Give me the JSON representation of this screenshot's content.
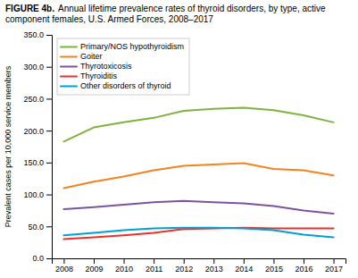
{
  "chart_data": {
    "type": "line",
    "title": "FIGURE 4b.",
    "subtitle": "Annual lifetime prevalence rates of thyroid disorders, by type, active component females, U.S. Armed Forces, 2008–2017",
    "y_label": "Prevalent cases per 10,000 service members",
    "x": [
      2008,
      2009,
      2010,
      2011,
      2012,
      2013,
      2014,
      2015,
      2016,
      2017
    ],
    "xlim": [
      2007.6,
      2017.4
    ],
    "xticks": [
      2008,
      2009,
      2010,
      2011,
      2012,
      2013,
      2014,
      2015,
      2016,
      2017
    ],
    "ylim": [
      0,
      350
    ],
    "yticks": [
      {
        "value": 0,
        "label": "0.0"
      },
      {
        "value": 50,
        "label": "50.0"
      },
      {
        "value": 100,
        "label": "100.0"
      },
      {
        "value": 150,
        "label": "150.0"
      },
      {
        "value": 200,
        "label": "200.0"
      },
      {
        "value": 250,
        "label": "250.0"
      },
      {
        "value": 300,
        "label": "300.0"
      },
      {
        "value": 350,
        "label": "350.0"
      }
    ],
    "series": [
      {
        "name": "Primary/NOS hypothyroidism",
        "color": "#7db43b",
        "values": [
          183,
          205,
          213,
          220,
          231,
          234,
          236,
          232,
          224,
          213
        ]
      },
      {
        "name": "Goiter",
        "color": "#f58220",
        "values": [
          110,
          120,
          128,
          138,
          145,
          147,
          149,
          140,
          138,
          130
        ]
      },
      {
        "name": "Thyrotoxicosis",
        "color": "#7b54a0",
        "values": [
          77,
          80,
          84,
          88,
          90,
          88,
          86,
          82,
          75,
          70
        ]
      },
      {
        "name": "Thyroiditis",
        "color": "#e8312a",
        "values": [
          30,
          33,
          36,
          40,
          46,
          47,
          48,
          47,
          47,
          47
        ]
      },
      {
        "name": "Other disorders of thyroid",
        "color": "#00a0d1",
        "values": [
          36,
          40,
          44,
          47,
          48,
          48,
          47,
          44,
          37,
          33
        ]
      }
    ],
    "grid": false,
    "legend": "upper left"
  }
}
